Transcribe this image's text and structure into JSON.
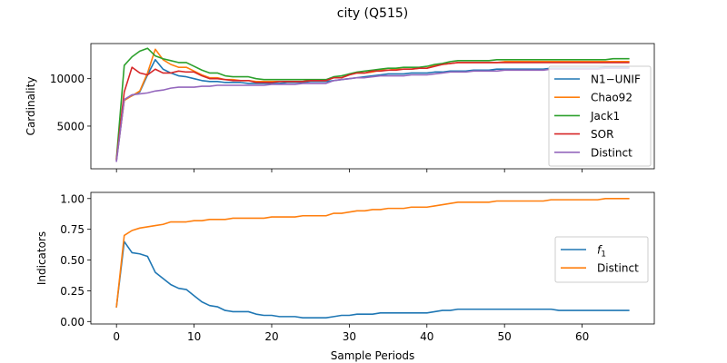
{
  "figure": {
    "title": "city (Q515)"
  },
  "chart_data": [
    {
      "type": "line",
      "ylabel": "Cardinality",
      "xlim": [
        -3.3,
        69.3
      ],
      "ylim": [
        500,
        13700
      ],
      "yticks": [
        5000,
        10000
      ],
      "xticks": [
        0,
        10,
        20,
        30,
        40,
        50,
        60
      ],
      "show_xtick_labels": false,
      "legend": "right",
      "x": [
        0,
        1,
        2,
        3,
        4,
        5,
        6,
        7,
        8,
        9,
        10,
        11,
        12,
        13,
        14,
        15,
        16,
        17,
        18,
        19,
        20,
        21,
        22,
        23,
        24,
        25,
        26,
        27,
        28,
        29,
        30,
        31,
        32,
        33,
        34,
        35,
        36,
        37,
        38,
        39,
        40,
        41,
        42,
        43,
        44,
        45,
        46,
        47,
        48,
        49,
        50,
        51,
        52,
        53,
        54,
        55,
        56,
        57,
        58,
        59,
        60,
        61,
        62,
        63,
        64,
        65,
        66
      ],
      "series": [
        {
          "name": "N1−UNIF",
          "color": "#1f77b4",
          "values": [
            1400,
            7800,
            8200,
            8600,
            10400,
            12000,
            11000,
            10600,
            10300,
            10200,
            10000,
            9800,
            9700,
            9700,
            9600,
            9600,
            9600,
            9500,
            9500,
            9500,
            9500,
            9500,
            9600,
            9600,
            9600,
            9700,
            9700,
            9700,
            9800,
            9900,
            10000,
            10100,
            10200,
            10300,
            10400,
            10500,
            10500,
            10500,
            10600,
            10600,
            10600,
            10700,
            10700,
            10800,
            10800,
            10800,
            10900,
            10900,
            10900,
            11000,
            11000,
            11000,
            11000,
            11000,
            11000,
            11000,
            11100,
            11100,
            11100,
            11100,
            11100,
            11100,
            11100,
            11200,
            11200,
            11200,
            11200
          ]
        },
        {
          "name": "Chao92",
          "color": "#ff7f0e",
          "values": [
            1500,
            7700,
            8200,
            8700,
            10600,
            13100,
            12000,
            11500,
            11200,
            11200,
            10800,
            10400,
            10100,
            10100,
            9900,
            9900,
            9800,
            9800,
            9700,
            9700,
            9700,
            9700,
            9700,
            9700,
            9700,
            9800,
            9800,
            9800,
            10100,
            10100,
            10400,
            10600,
            10600,
            10700,
            10900,
            10900,
            11000,
            11000,
            11000,
            11100,
            11100,
            11400,
            11500,
            11600,
            11700,
            11700,
            11700,
            11700,
            11700,
            11700,
            11800,
            11800,
            11800,
            11800,
            11800,
            11800,
            11800,
            11800,
            11800,
            11800,
            11800,
            11800,
            11800,
            11800,
            11800,
            11800,
            11800
          ]
        },
        {
          "name": "Jack1",
          "color": "#2ca02c",
          "values": [
            1600,
            11400,
            12300,
            12900,
            13200,
            12400,
            12100,
            11900,
            11700,
            11700,
            11300,
            10900,
            10600,
            10600,
            10300,
            10200,
            10200,
            10200,
            10000,
            9900,
            9900,
            9900,
            9900,
            9900,
            9900,
            9900,
            9900,
            9900,
            10200,
            10300,
            10500,
            10700,
            10800,
            10900,
            11000,
            11100,
            11100,
            11200,
            11200,
            11200,
            11300,
            11500,
            11600,
            11800,
            11900,
            11900,
            11900,
            11900,
            11900,
            12000,
            12000,
            12000,
            12000,
            12000,
            12000,
            12000,
            12000,
            12000,
            12000,
            12000,
            12000,
            12000,
            12000,
            12000,
            12100,
            12100,
            12100
          ]
        },
        {
          "name": "SOR",
          "color": "#d62728",
          "values": [
            1500,
            8600,
            11200,
            10600,
            10400,
            11000,
            10600,
            10600,
            10800,
            10700,
            10700,
            10300,
            10000,
            10000,
            9900,
            9800,
            9800,
            9800,
            9600,
            9600,
            9600,
            9700,
            9700,
            9700,
            9700,
            9800,
            9800,
            9800,
            10100,
            10100,
            10400,
            10600,
            10600,
            10800,
            10800,
            10900,
            10900,
            11000,
            11000,
            11100,
            11100,
            11300,
            11500,
            11600,
            11700,
            11700,
            11700,
            11700,
            11700,
            11700,
            11700,
            11700,
            11700,
            11700,
            11700,
            11700,
            11700,
            11700,
            11700,
            11700,
            11700,
            11700,
            11700,
            11700,
            11700,
            11700,
            11700
          ]
        },
        {
          "name": "Distinct",
          "color": "#9467bd",
          "values": [
            1300,
            7800,
            8300,
            8400,
            8500,
            8700,
            8800,
            9000,
            9100,
            9100,
            9100,
            9200,
            9200,
            9300,
            9300,
            9300,
            9300,
            9300,
            9300,
            9300,
            9400,
            9400,
            9400,
            9400,
            9500,
            9500,
            9500,
            9500,
            9800,
            9900,
            10000,
            10100,
            10100,
            10200,
            10300,
            10300,
            10300,
            10300,
            10400,
            10400,
            10400,
            10500,
            10600,
            10700,
            10700,
            10700,
            10800,
            10800,
            10800,
            10800,
            10900,
            10900,
            10900,
            10900,
            10900,
            10900,
            11000,
            11000,
            11000,
            11000,
            11000,
            11000,
            11000,
            11100,
            11100,
            11100,
            11100
          ]
        }
      ]
    },
    {
      "type": "line",
      "xlabel": "Sample Periods",
      "ylabel": "Indicators",
      "xlim": [
        -3.3,
        69.3
      ],
      "ylim": [
        -0.02,
        1.05
      ],
      "yticks": [
        0.0,
        0.25,
        0.5,
        0.75,
        1.0
      ],
      "ytick_labels": [
        "0.00",
        "0.25",
        "0.50",
        "0.75",
        "1.00"
      ],
      "xticks": [
        0,
        10,
        20,
        30,
        40,
        50,
        60
      ],
      "xtick_labels": [
        "0",
        "10",
        "20",
        "30",
        "40",
        "50",
        "60"
      ],
      "legend": "right",
      "x": [
        0,
        1,
        2,
        3,
        4,
        5,
        6,
        7,
        8,
        9,
        10,
        11,
        12,
        13,
        14,
        15,
        16,
        17,
        18,
        19,
        20,
        21,
        22,
        23,
        24,
        25,
        26,
        27,
        28,
        29,
        30,
        31,
        32,
        33,
        34,
        35,
        36,
        37,
        38,
        39,
        40,
        41,
        42,
        43,
        44,
        45,
        46,
        47,
        48,
        49,
        50,
        51,
        52,
        53,
        54,
        55,
        56,
        57,
        58,
        59,
        60,
        61,
        62,
        63,
        64,
        65,
        66
      ],
      "series": [
        {
          "name": "f",
          "name_subscript": "1",
          "color": "#1f77b4",
          "values": [
            0.12,
            0.65,
            0.56,
            0.55,
            0.53,
            0.4,
            0.35,
            0.3,
            0.27,
            0.26,
            0.21,
            0.16,
            0.13,
            0.12,
            0.09,
            0.08,
            0.08,
            0.08,
            0.06,
            0.05,
            0.05,
            0.04,
            0.04,
            0.04,
            0.03,
            0.03,
            0.03,
            0.03,
            0.04,
            0.05,
            0.05,
            0.06,
            0.06,
            0.06,
            0.07,
            0.07,
            0.07,
            0.07,
            0.07,
            0.07,
            0.07,
            0.08,
            0.09,
            0.09,
            0.1,
            0.1,
            0.1,
            0.1,
            0.1,
            0.1,
            0.1,
            0.1,
            0.1,
            0.1,
            0.1,
            0.1,
            0.1,
            0.09,
            0.09,
            0.09,
            0.09,
            0.09,
            0.09,
            0.09,
            0.09,
            0.09,
            0.09
          ]
        },
        {
          "name": "Distinct",
          "color": "#ff7f0e",
          "values": [
            0.12,
            0.7,
            0.74,
            0.76,
            0.77,
            0.78,
            0.79,
            0.81,
            0.81,
            0.81,
            0.82,
            0.82,
            0.83,
            0.83,
            0.83,
            0.84,
            0.84,
            0.84,
            0.84,
            0.84,
            0.85,
            0.85,
            0.85,
            0.85,
            0.86,
            0.86,
            0.86,
            0.86,
            0.88,
            0.88,
            0.89,
            0.9,
            0.9,
            0.91,
            0.91,
            0.92,
            0.92,
            0.92,
            0.93,
            0.93,
            0.93,
            0.94,
            0.95,
            0.96,
            0.97,
            0.97,
            0.97,
            0.97,
            0.97,
            0.98,
            0.98,
            0.98,
            0.98,
            0.98,
            0.98,
            0.98,
            0.99,
            0.99,
            0.99,
            0.99,
            0.99,
            0.99,
            0.99,
            1.0,
            1.0,
            1.0,
            1.0
          ]
        }
      ]
    }
  ]
}
